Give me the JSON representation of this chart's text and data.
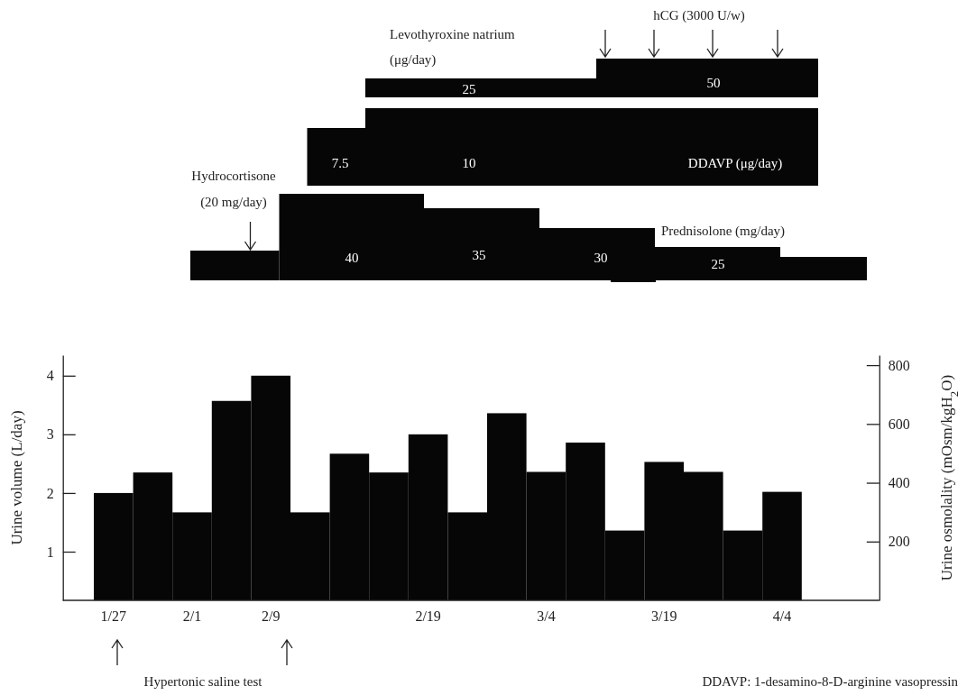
{
  "chart_data": {
    "type": "bar",
    "xlabel": null,
    "ylabel": "Urine volume (L/day)",
    "y2label": "Urine osmolality (mOsm/kgH$_{2}$O)",
    "categories": [
      "1/27",
      null,
      "2/1",
      null,
      "2/9",
      null,
      null,
      null,
      "2/19",
      null,
      null,
      "3/4",
      null,
      null,
      "3/19",
      null,
      null,
      "4/4"
    ],
    "values": [
      2.0,
      2.35,
      1.67,
      3.57,
      4.0,
      1.67,
      2.67,
      2.35,
      3.0,
      1.67,
      3.36,
      2.36,
      2.86,
      1.36,
      2.53,
      2.36,
      1.36,
      2.02
    ],
    "color": "#060606",
    "ylim": [
      0.17,
      4.35
    ],
    "yticks": [
      1,
      2,
      3,
      4
    ],
    "y2lim": [
      0,
      834
    ],
    "y2ticks": [
      200,
      400,
      600,
      800
    ],
    "grid": false,
    "annotations": [
      "hCG (3000 U/w)",
      "Levothyroxine natrium",
      "(μg/day)",
      "25",
      "50",
      "7.5",
      "10",
      "DDAVP (μg/day)",
      "Hydrocortisone",
      "(20 mg/day)",
      "40",
      "35",
      "30",
      "25",
      "Prednisolone (mg/day)",
      "Hypertonic saline test",
      "DDAVP: 1-desamino-8-D-arginine vasopressin"
    ]
  }
}
